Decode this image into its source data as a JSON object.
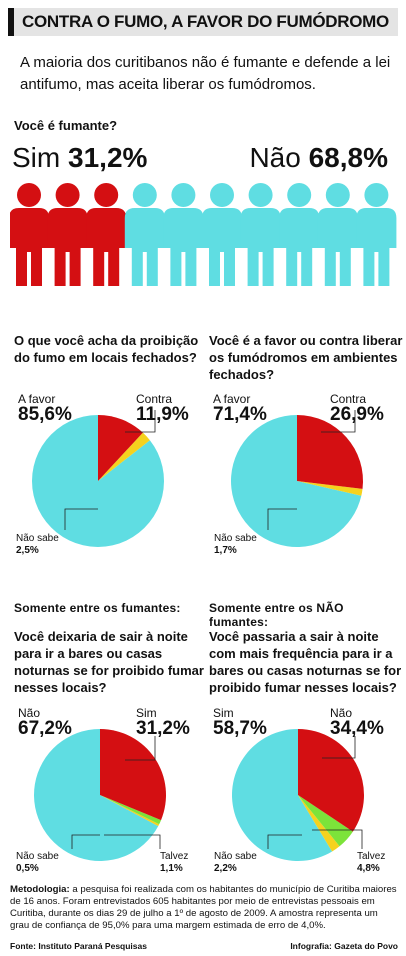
{
  "title": "CONTRA O FUMO, A FAVOR DO FUMÓDROMO",
  "intro": "A maioria dos curitibanos não é fumante e defende a lei antifumo, mas aceita liberar os fumódromos.",
  "smoker": {
    "question": "Você é fumante?",
    "sim_label": "Sim",
    "sim_pct": "31,2%",
    "nao_label": "Não",
    "nao_pct": "68,8%",
    "colors": {
      "sim": "#d40f12",
      "nao": "#5fdde2"
    }
  },
  "section_labels": {
    "smokers_only": "Somente entre os fumantes:",
    "non_smokers_only": "Somente entre os NÃO fumantes:"
  },
  "colors": {
    "cyan": "#5fdde2",
    "red": "#d40f12",
    "yellow": "#f5d21e",
    "green": "#7ce33a"
  },
  "chart_data": [
    {
      "type": "pie",
      "title": "Você é fumante?",
      "categories": [
        "Sim",
        "Não"
      ],
      "values": [
        31.2,
        68.8
      ],
      "unit": "%"
    },
    {
      "type": "pie",
      "title": "O que você acha da proibição do fumo em locais fechados?",
      "slices": [
        {
          "label": "A favor",
          "value": 85.6,
          "text": "85,6%",
          "color": "#5fdde2"
        },
        {
          "label": "Não sabe",
          "value": 2.5,
          "text": "2,5%",
          "color": "#f5d21e"
        },
        {
          "label": "Contra",
          "value": 11.9,
          "text": "11,9%",
          "color": "#d40f12"
        }
      ]
    },
    {
      "type": "pie",
      "title": "Você é a favor ou contra liberar os fumódromos em ambientes fechados?",
      "slices": [
        {
          "label": "A favor",
          "value": 71.4,
          "text": "71,4%",
          "color": "#5fdde2"
        },
        {
          "label": "Não sabe",
          "value": 1.7,
          "text": "1,7%",
          "color": "#f5d21e"
        },
        {
          "label": "Contra",
          "value": 26.9,
          "text": "26,9%",
          "color": "#d40f12"
        }
      ]
    },
    {
      "type": "pie",
      "title": "Você deixaria de sair à noite para ir a bares ou casas noturnas se for proibido fumar nesses locais?",
      "slices": [
        {
          "label": "Não",
          "value": 67.2,
          "text": "67,2%",
          "color": "#5fdde2"
        },
        {
          "label": "Não sabe",
          "value": 0.5,
          "text": "0,5%",
          "color": "#f5d21e"
        },
        {
          "label": "Talvez",
          "value": 1.1,
          "text": "1,1%",
          "color": "#7ce33a"
        },
        {
          "label": "Sim",
          "value": 31.2,
          "text": "31,2%",
          "color": "#d40f12"
        }
      ]
    },
    {
      "type": "pie",
      "title": "Você passaria a sair à noite com mais frequência para ir a bares ou casas noturnas se for proibido fumar nesses locais?",
      "slices": [
        {
          "label": "Sim",
          "value": 58.7,
          "text": "58,7%",
          "color": "#5fdde2"
        },
        {
          "label": "Não sabe",
          "value": 2.2,
          "text": "2,2%",
          "color": "#f5d21e"
        },
        {
          "label": "Talvez",
          "value": 4.8,
          "text": "4,8%",
          "color": "#7ce33a"
        },
        {
          "label": "Não",
          "value": 34.4,
          "text": "34,4%",
          "color": "#d40f12"
        }
      ]
    }
  ],
  "methodology": {
    "label": "Metodologia:",
    "text": "a pesquisa foi realizada com os habitantes do município de Curitiba maiores de 16 anos. Foram entrevistados 605 habitantes por meio de entrevistas pessoais em Curitiba, durante os dias 29 de julho a 1º de agosto de 2009. A amostra representa um grau de confiança de 95,0% para uma margem estimada de erro de 4,0%."
  },
  "source": "Fonte: Instituto Paraná Pesquisas",
  "credit": "Infografia: Gazeta do Povo"
}
